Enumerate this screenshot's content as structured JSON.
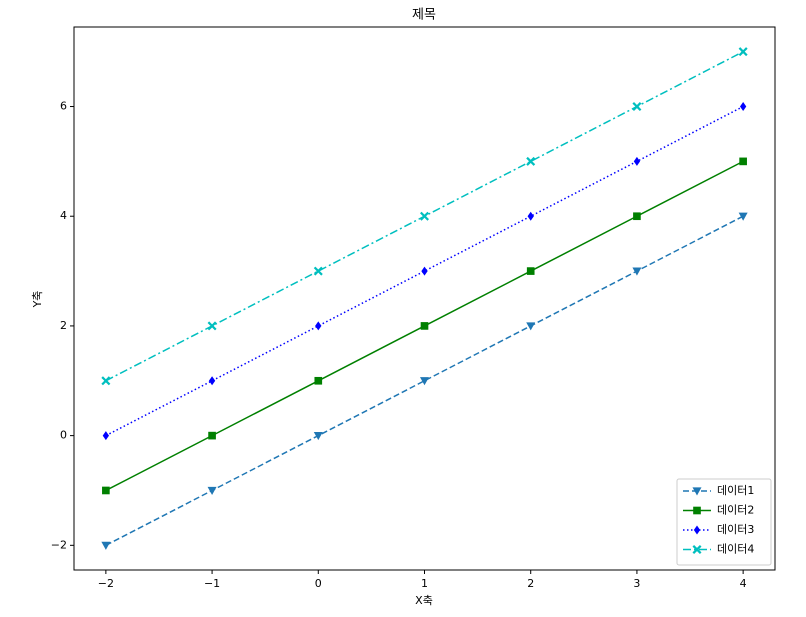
{
  "chart_data": {
    "type": "line",
    "title": "제목",
    "x_label": "X축",
    "y_label": "Y축",
    "x": [
      -2,
      -1,
      0,
      1,
      2,
      3,
      4
    ],
    "series": [
      {
        "name": "데이터1",
        "color": "#1f77b4",
        "linestyle": "--",
        "marker": "v",
        "values": [
          -2,
          -1,
          0,
          1,
          2,
          3,
          4
        ]
      },
      {
        "name": "데이터2",
        "color": "#008000",
        "linestyle": "-",
        "marker": "s",
        "values": [
          -1,
          0,
          1,
          2,
          3,
          4,
          5
        ]
      },
      {
        "name": "데이터3",
        "color": "#0000ff",
        "linestyle": ":",
        "marker": "D",
        "values": [
          0,
          1,
          2,
          3,
          4,
          5,
          6
        ]
      },
      {
        "name": "데이터4",
        "color": "#00bfbf",
        "linestyle": "-.",
        "marker": "X",
        "values": [
          1,
          2,
          3,
          4,
          5,
          6,
          7
        ]
      }
    ],
    "xlim": [
      -2.3,
      4.3
    ],
    "ylim": [
      -2.45,
      7.45
    ],
    "xticks": [
      {
        "value": -2,
        "label": "−2"
      },
      {
        "value": -1,
        "label": "−1"
      },
      0,
      1,
      2,
      3,
      4
    ],
    "yticks": [
      {
        "value": -2,
        "label": "−2"
      },
      0,
      2,
      4,
      6
    ],
    "legend": "lower right",
    "grid": false
  }
}
